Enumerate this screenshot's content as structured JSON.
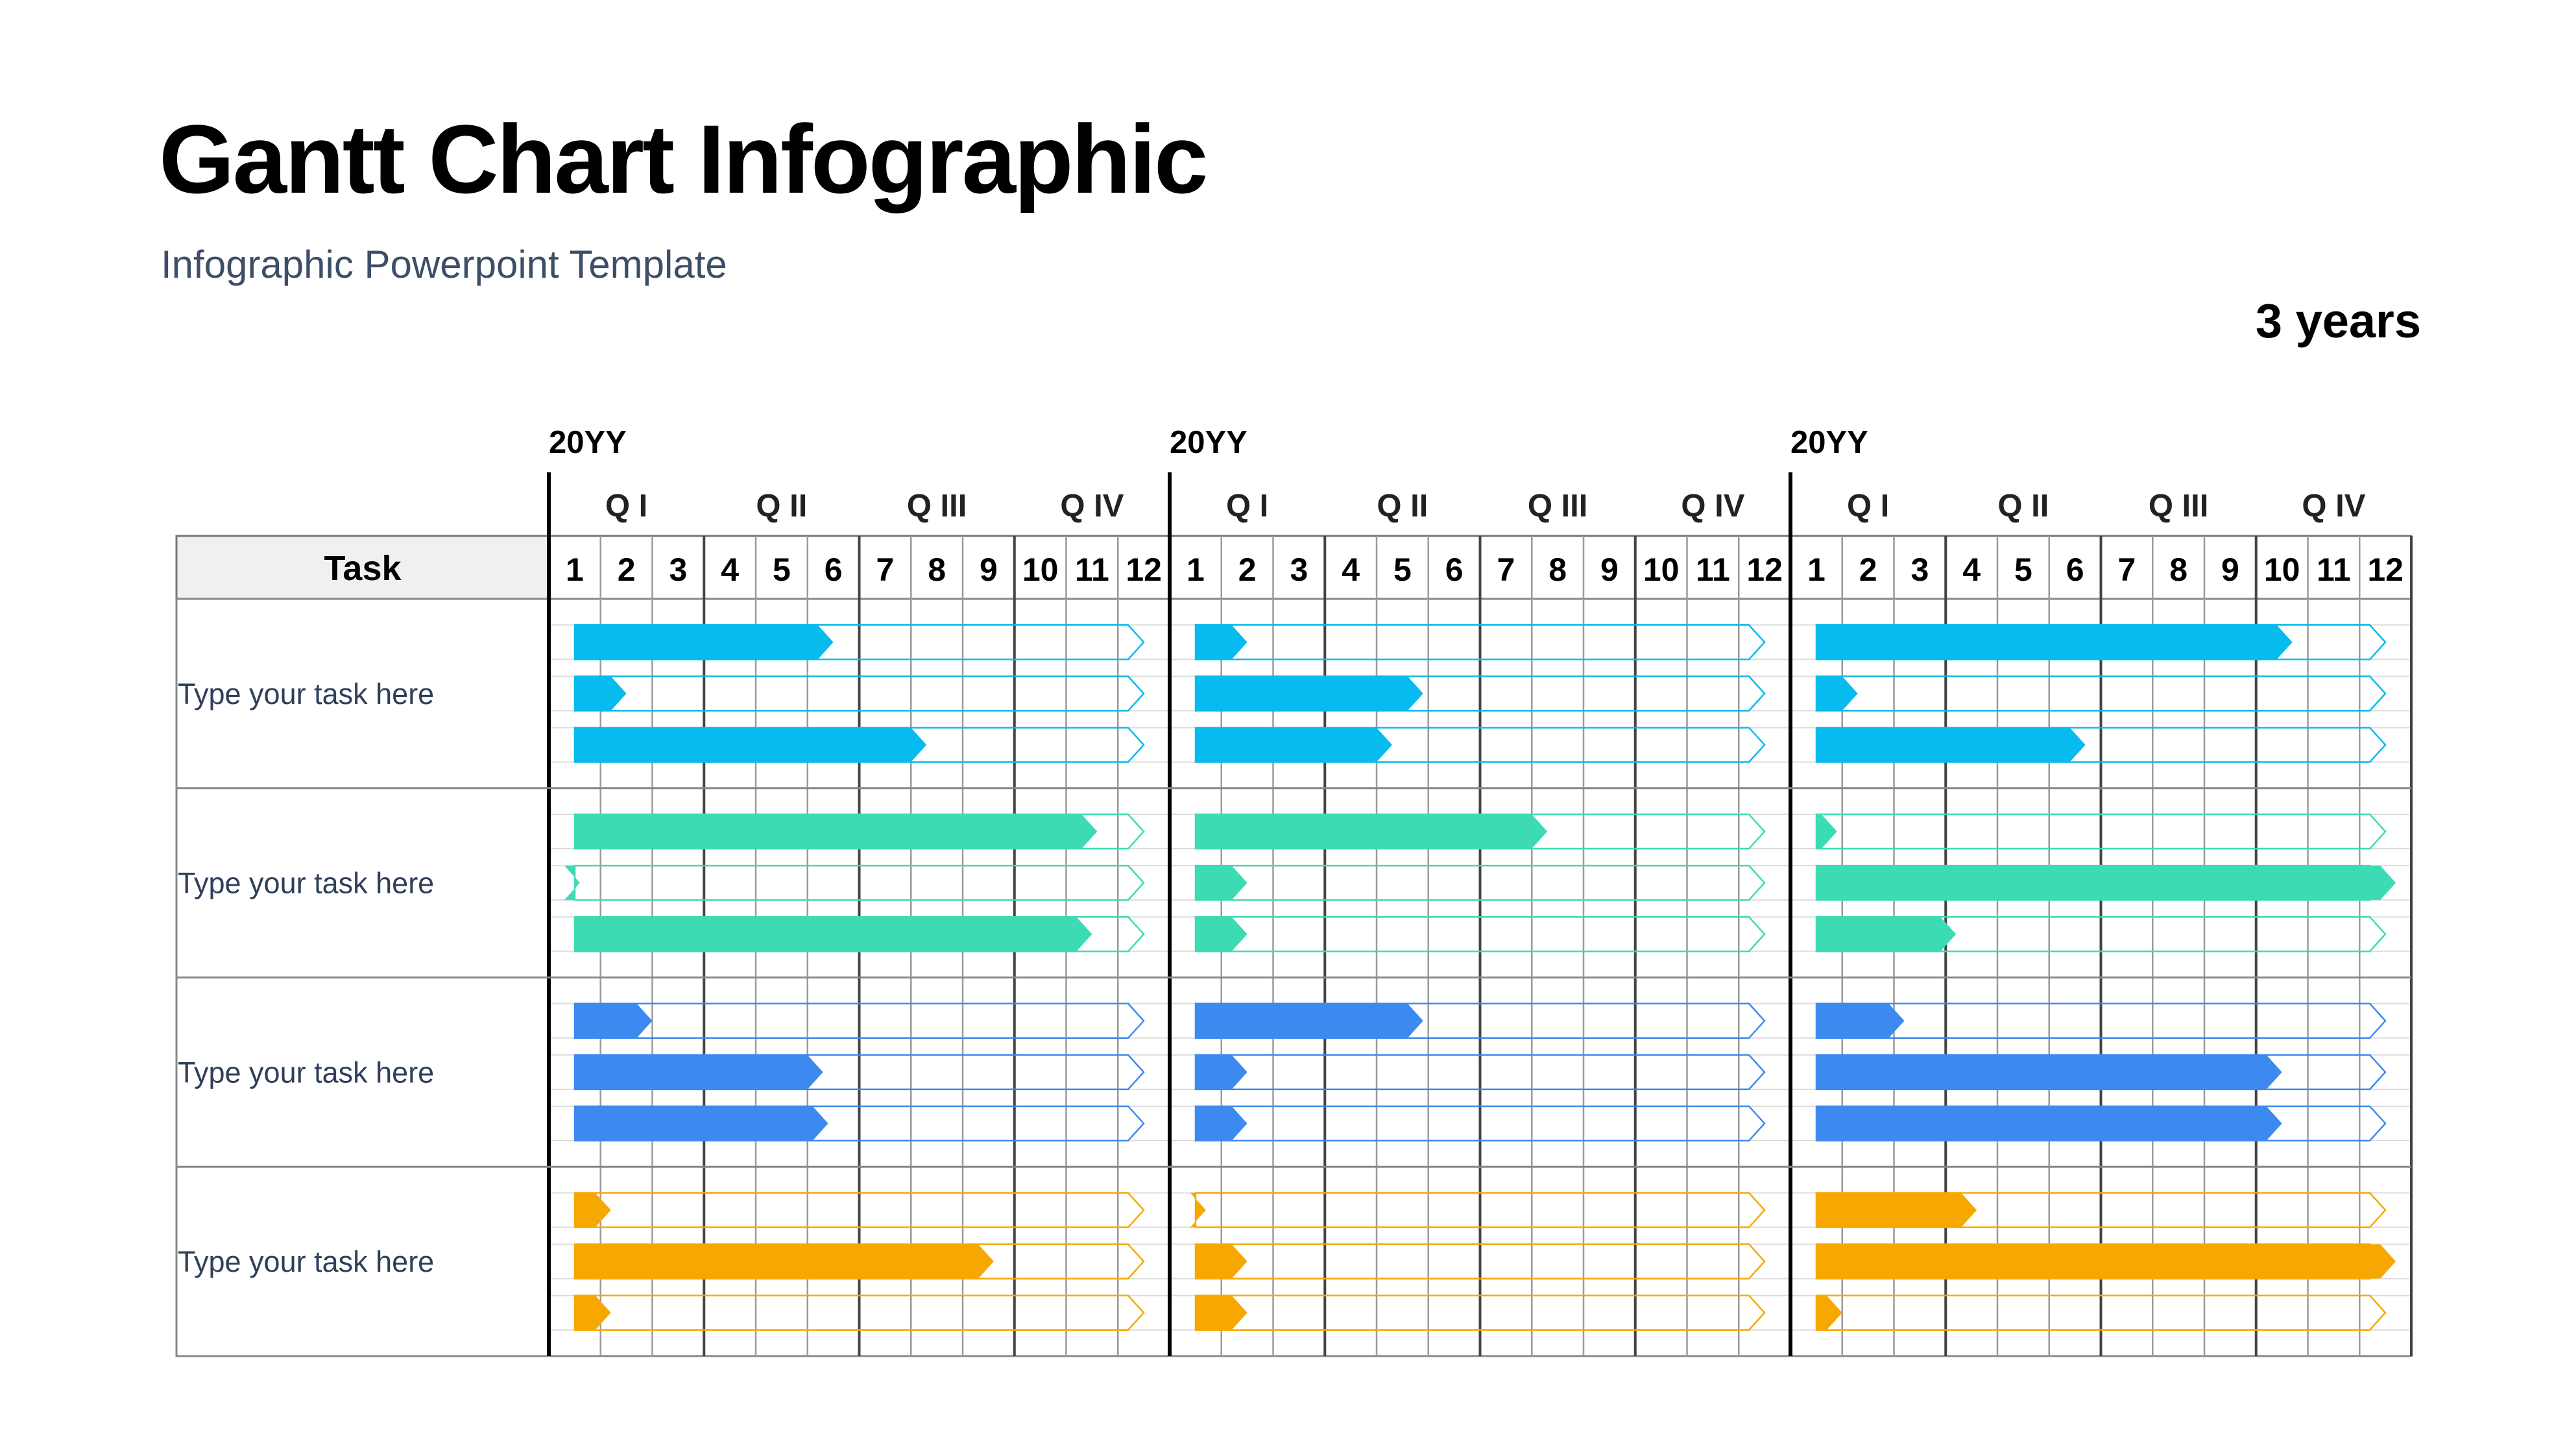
{
  "title": "Gantt Chart Infographic",
  "subtitle": "Infographic Powerpoint Template",
  "duration_label": "3 years",
  "chart_data": {
    "type": "gantt",
    "task_column_header": "Task",
    "years": [
      "20YY",
      "20YY",
      "20YY"
    ],
    "quarters": [
      "Q I",
      "Q II",
      "Q III",
      "Q IV"
    ],
    "months": [
      "1",
      "2",
      "3",
      "4",
      "5",
      "6",
      "7",
      "8",
      "9",
      "10",
      "11",
      "12"
    ],
    "tasks": [
      {
        "label": "Type your task here",
        "color": "#08bbee",
        "bars": [
          [
            5.5,
            1.5,
            7.3
          ],
          [
            1.5,
            4.9,
            4.3
          ],
          [
            9.7,
            1.3,
            5.7
          ]
        ]
      },
      {
        "label": "Type your task here",
        "color": "#3ddbb4",
        "bars": [
          [
            10.6,
            0.6,
            10.5
          ],
          [
            7.3,
            1.5,
            1.5
          ],
          [
            0.9,
            11.7,
            3.2
          ]
        ]
      },
      {
        "label": "Type your task here",
        "color": "#3c8af0",
        "bars": [
          [
            2.0,
            5.3,
            5.4
          ],
          [
            4.9,
            1.5,
            1.5
          ],
          [
            2.2,
            9.5,
            9.5
          ]
        ]
      },
      {
        "label": "Type your task here",
        "color": "#f7a800",
        "bars": [
          [
            1.2,
            8.6,
            1.2
          ],
          [
            0.7,
            1.5,
            1.5
          ],
          [
            3.6,
            11.7,
            1.0
          ]
        ]
      }
    ]
  }
}
